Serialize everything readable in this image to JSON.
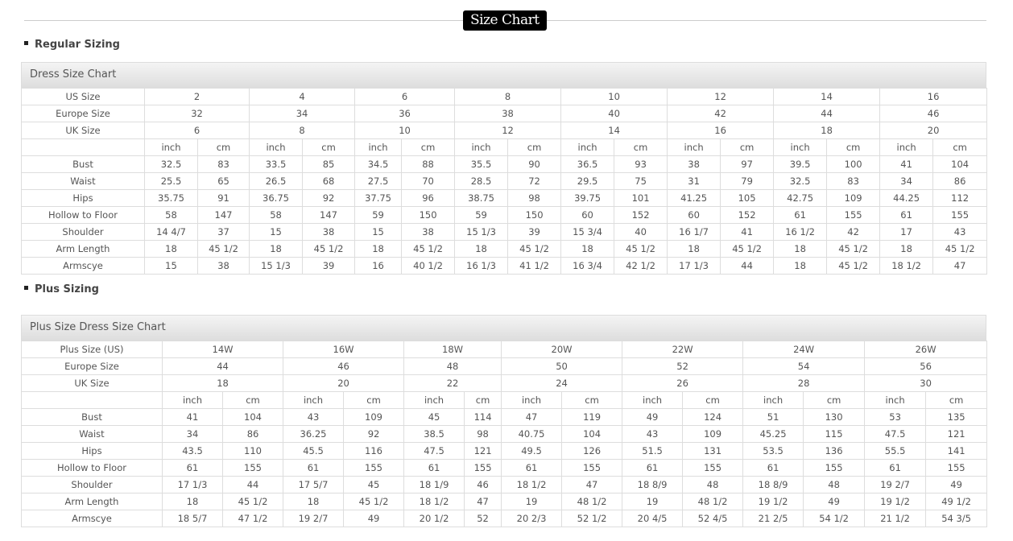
{
  "page_title": "Size Chart",
  "regular": {
    "section_label": "Regular Sizing",
    "chart_title": "Dress Size Chart",
    "size_rows": [
      {
        "label": "US Size",
        "values": [
          "2",
          "4",
          "6",
          "8",
          "10",
          "12",
          "14",
          "16"
        ]
      },
      {
        "label": "Europe Size",
        "values": [
          "32",
          "34",
          "36",
          "38",
          "40",
          "42",
          "44",
          "46"
        ]
      },
      {
        "label": "UK Size",
        "values": [
          "6",
          "8",
          "10",
          "12",
          "14",
          "16",
          "18",
          "20"
        ]
      }
    ],
    "units": [
      "inch",
      "cm"
    ],
    "measure_rows": [
      {
        "label": "Bust",
        "values": [
          "32.5",
          "83",
          "33.5",
          "85",
          "34.5",
          "88",
          "35.5",
          "90",
          "36.5",
          "93",
          "38",
          "97",
          "39.5",
          "100",
          "41",
          "104"
        ]
      },
      {
        "label": "Waist",
        "values": [
          "25.5",
          "65",
          "26.5",
          "68",
          "27.5",
          "70",
          "28.5",
          "72",
          "29.5",
          "75",
          "31",
          "79",
          "32.5",
          "83",
          "34",
          "86"
        ]
      },
      {
        "label": "Hips",
        "values": [
          "35.75",
          "91",
          "36.75",
          "92",
          "37.75",
          "96",
          "38.75",
          "98",
          "39.75",
          "101",
          "41.25",
          "105",
          "42.75",
          "109",
          "44.25",
          "112"
        ]
      },
      {
        "label": "Hollow to Floor",
        "values": [
          "58",
          "147",
          "58",
          "147",
          "59",
          "150",
          "59",
          "150",
          "60",
          "152",
          "60",
          "152",
          "61",
          "155",
          "61",
          "155"
        ]
      },
      {
        "label": "Shoulder",
        "values": [
          "14 4/7",
          "37",
          "15",
          "38",
          "15",
          "38",
          "15 1/3",
          "39",
          "15 3/4",
          "40",
          "16 1/7",
          "41",
          "16 1/2",
          "42",
          "17",
          "43"
        ]
      },
      {
        "label": "Arm Length",
        "values": [
          "18",
          "45 1/2",
          "18",
          "45 1/2",
          "18",
          "45 1/2",
          "18",
          "45 1/2",
          "18",
          "45 1/2",
          "18",
          "45 1/2",
          "18",
          "45 1/2",
          "18",
          "45 1/2"
        ]
      },
      {
        "label": "Armscye",
        "values": [
          "15",
          "38",
          "15 1/3",
          "39",
          "16",
          "40 1/2",
          "16 1/3",
          "41 1/2",
          "16 3/4",
          "42 1/2",
          "17 1/3",
          "44",
          "18",
          "45 1/2",
          "18 1/2",
          "47"
        ]
      }
    ]
  },
  "plus": {
    "section_label": "Plus Sizing",
    "chart_title": "Plus Size Dress Size Chart",
    "size_rows": [
      {
        "label": "Plus Size (US)",
        "values": [
          "14W",
          "16W",
          "18W",
          "20W",
          "22W",
          "24W",
          "26W"
        ]
      },
      {
        "label": "Europe Size",
        "values": [
          "44",
          "46",
          "48",
          "50",
          "52",
          "54",
          "56"
        ]
      },
      {
        "label": "UK Size",
        "values": [
          "18",
          "20",
          "22",
          "24",
          "26",
          "28",
          "30"
        ]
      }
    ],
    "units": [
      "inch",
      "cm"
    ],
    "measure_rows": [
      {
        "label": "Bust",
        "values": [
          "41",
          "104",
          "43",
          "109",
          "45",
          "114",
          "47",
          "119",
          "49",
          "124",
          "51",
          "130",
          "53",
          "135"
        ]
      },
      {
        "label": "Waist",
        "values": [
          "34",
          "86",
          "36.25",
          "92",
          "38.5",
          "98",
          "40.75",
          "104",
          "43",
          "109",
          "45.25",
          "115",
          "47.5",
          "121"
        ]
      },
      {
        "label": "Hips",
        "values": [
          "43.5",
          "110",
          "45.5",
          "116",
          "47.5",
          "121",
          "49.5",
          "126",
          "51.5",
          "131",
          "53.5",
          "136",
          "55.5",
          "141"
        ]
      },
      {
        "label": "Hollow to Floor",
        "values": [
          "61",
          "155",
          "61",
          "155",
          "61",
          "155",
          "61",
          "155",
          "61",
          "155",
          "61",
          "155",
          "61",
          "155"
        ]
      },
      {
        "label": "Shoulder",
        "values": [
          "17 1/3",
          "44",
          "17 5/7",
          "45",
          "18 1/9",
          "46",
          "18 1/2",
          "47",
          "18 8/9",
          "48",
          "18 8/9",
          "48",
          "19 2/7",
          "49"
        ]
      },
      {
        "label": "Arm Length",
        "values": [
          "18",
          "45 1/2",
          "18",
          "45 1/2",
          "18 1/2",
          "47",
          "19",
          "48 1/2",
          "19",
          "48 1/2",
          "19 1/2",
          "49",
          "19 1/2",
          "49 1/2"
        ]
      },
      {
        "label": "Armscye",
        "values": [
          "18 5/7",
          "47 1/2",
          "19 2/7",
          "49",
          "20 1/2",
          "52",
          "20 2/3",
          "52 1/2",
          "20 4/5",
          "52 4/5",
          "21 2/5",
          "54 1/2",
          "21 1/2",
          "54 3/5"
        ]
      }
    ]
  }
}
